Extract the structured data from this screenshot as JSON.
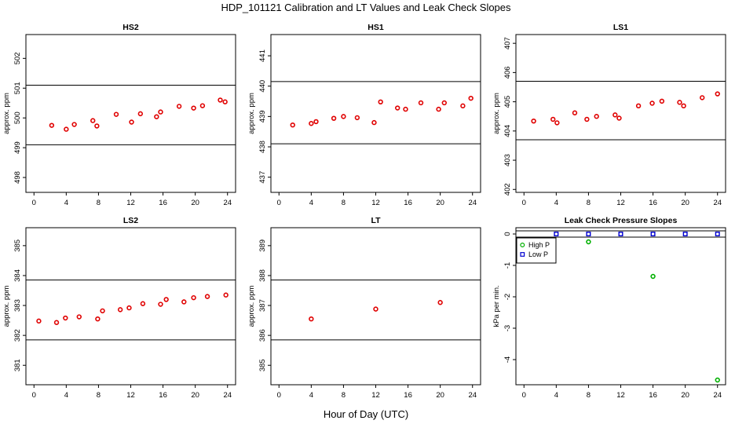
{
  "figure": {
    "title": "HDP_101121  Calibration and LT Values and Leak Check Slopes",
    "xlabel": "Hour of Day (UTC)"
  },
  "chart_data": [
    {
      "id": "hs2",
      "type": "scatter",
      "title": "HS2",
      "ylabel": "approx. ppm",
      "xlim": [
        -1,
        25
      ],
      "ylim": [
        497.5,
        502.8
      ],
      "xticks": [
        "0",
        "4",
        "8",
        "12",
        "16",
        "20",
        "24"
      ],
      "yticks": [
        "498",
        "499",
        "500",
        "501",
        "502"
      ],
      "hlines": [
        499.1,
        501.1
      ],
      "series": [
        {
          "marker": "circle",
          "color": "#e00000",
          "x": [
            2.2,
            4.0,
            5.0,
            7.3,
            7.8,
            10.2,
            12.1,
            13.2,
            15.2,
            15.7,
            18.0,
            19.8,
            20.9,
            23.1,
            23.7
          ],
          "y": [
            499.75,
            499.62,
            499.78,
            499.91,
            499.73,
            500.12,
            499.86,
            500.14,
            500.04,
            500.2,
            500.39,
            500.33,
            500.41,
            500.6,
            500.54
          ]
        }
      ]
    },
    {
      "id": "hs1",
      "type": "scatter",
      "title": "HS1",
      "ylabel": "approx. ppm",
      "xlim": [
        -1,
        25
      ],
      "ylim": [
        436.5,
        441.7
      ],
      "xticks": [
        "0",
        "4",
        "8",
        "12",
        "16",
        "20",
        "24"
      ],
      "yticks": [
        "437",
        "438",
        "439",
        "440",
        "441"
      ],
      "hlines": [
        438.1,
        440.15
      ],
      "series": [
        {
          "marker": "circle",
          "color": "#e00000",
          "x": [
            1.7,
            4.0,
            4.6,
            6.8,
            8.0,
            9.7,
            11.8,
            12.6,
            14.7,
            15.7,
            17.6,
            19.8,
            20.5,
            22.8,
            23.8
          ],
          "y": [
            438.72,
            438.77,
            438.83,
            438.94,
            439.0,
            438.96,
            438.8,
            439.48,
            439.28,
            439.24,
            439.45,
            439.24,
            439.45,
            439.35,
            439.6
          ]
        }
      ]
    },
    {
      "id": "ls1",
      "type": "scatter",
      "title": "LS1",
      "ylabel": "approx. ppm",
      "xlim": [
        -1,
        25
      ],
      "ylim": [
        401.9,
        407.3
      ],
      "xticks": [
        "0",
        "4",
        "8",
        "12",
        "16",
        "20",
        "24"
      ],
      "yticks": [
        "402",
        "403",
        "404",
        "405",
        "406",
        "407"
      ],
      "hlines": [
        403.7,
        405.7
      ],
      "series": [
        {
          "marker": "circle",
          "color": "#e00000",
          "x": [
            1.2,
            3.6,
            4.1,
            6.3,
            7.8,
            9.0,
            11.3,
            11.8,
            14.2,
            15.9,
            17.1,
            19.3,
            19.8,
            22.1,
            24.0
          ],
          "y": [
            404.34,
            404.4,
            404.28,
            404.62,
            404.4,
            404.5,
            404.55,
            404.44,
            404.86,
            404.95,
            405.02,
            404.98,
            404.86,
            405.14,
            405.27
          ]
        }
      ]
    },
    {
      "id": "ls2",
      "type": "scatter",
      "title": "LS2",
      "ylabel": "approx. ppm",
      "xlim": [
        -1,
        25
      ],
      "ylim": [
        380.35,
        385.6
      ],
      "xticks": [
        "0",
        "4",
        "8",
        "12",
        "16",
        "20",
        "24"
      ],
      "yticks": [
        "381",
        "382",
        "383",
        "384",
        "385"
      ],
      "hlines": [
        381.85,
        383.85
      ],
      "series": [
        {
          "marker": "circle",
          "color": "#e00000",
          "x": [
            0.6,
            2.8,
            3.9,
            5.6,
            7.9,
            8.5,
            10.7,
            11.8,
            13.5,
            15.7,
            16.4,
            18.6,
            19.8,
            21.5,
            23.8
          ],
          "y": [
            382.48,
            382.43,
            382.58,
            382.62,
            382.55,
            382.82,
            382.86,
            382.92,
            383.06,
            383.04,
            383.2,
            383.12,
            383.26,
            383.3,
            383.35
          ]
        }
      ]
    },
    {
      "id": "lt",
      "type": "scatter",
      "title": "LT",
      "ylabel": "approx. ppm",
      "xlim": [
        -1,
        25
      ],
      "ylim": [
        384.35,
        389.6
      ],
      "xticks": [
        "0",
        "4",
        "8",
        "12",
        "16",
        "20",
        "24"
      ],
      "yticks": [
        "385",
        "386",
        "387",
        "388",
        "389"
      ],
      "hlines": [
        385.85,
        387.85
      ],
      "series": [
        {
          "marker": "circle",
          "color": "#e00000",
          "x": [
            4.0,
            12.0,
            20.0
          ],
          "y": [
            386.55,
            386.88,
            387.1
          ]
        }
      ]
    },
    {
      "id": "leak",
      "type": "scatter",
      "title": "Leak Check Pressure Slopes",
      "ylabel": "kPa per min.",
      "xlim": [
        -1,
        25
      ],
      "ylim": [
        -4.8,
        0.2
      ],
      "xticks": [
        "0",
        "4",
        "8",
        "12",
        "16",
        "20",
        "24"
      ],
      "yticks": [
        "-4",
        "-3",
        "-2",
        "-1",
        "0"
      ],
      "hlines": [
        0.1,
        -0.1
      ],
      "legend": {
        "position": "top-left"
      },
      "series": [
        {
          "name": "High P",
          "marker": "circle",
          "color": "#00b000",
          "x": [
            8.0,
            16.0,
            24.0
          ],
          "y": [
            -0.25,
            -1.35,
            -4.65
          ]
        },
        {
          "name": "Low P",
          "marker": "square",
          "color": "#0000d0",
          "x": [
            4.0,
            8.0,
            12.0,
            16.0,
            20.0,
            24.0
          ],
          "y": [
            0.0,
            0.0,
            0.0,
            0.0,
            0.0,
            0.0
          ]
        }
      ]
    }
  ]
}
